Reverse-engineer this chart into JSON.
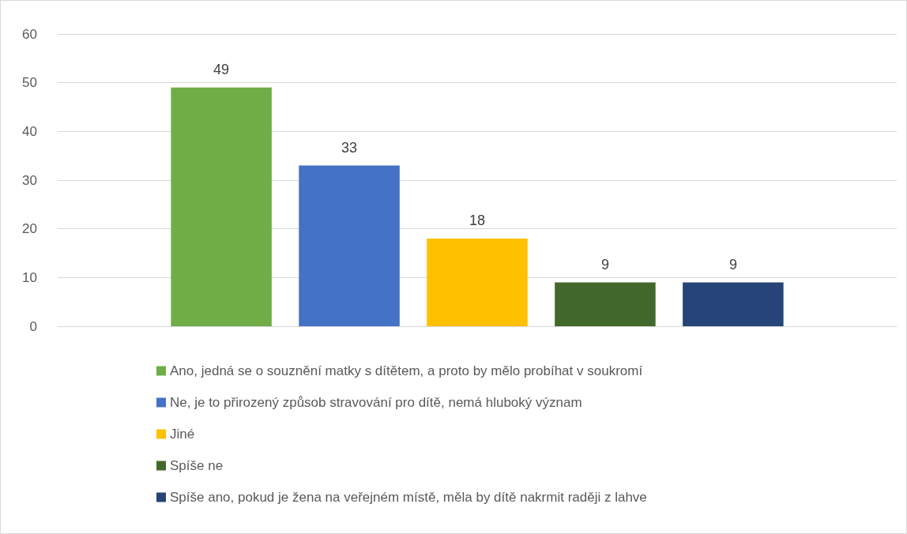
{
  "chart_data": {
    "type": "bar",
    "categories": [
      null
    ],
    "series": [
      {
        "name": "Ano, jedná se o souznění matky s dítětem, a proto by mělo probíhat v soukromí",
        "color": "#70ad47",
        "values": [
          49
        ]
      },
      {
        "name": "Ne, je to přirozený způsob stravování pro dítě, nemá hluboký význam",
        "color": "#4472c4",
        "values": [
          33
        ]
      },
      {
        "name": "Jiné",
        "color": "#ffc000",
        "values": [
          18
        ]
      },
      {
        "name": "Spíše ne",
        "color": "#43682b",
        "values": [
          9
        ]
      },
      {
        "name": "Spíše ano, pokud je žena na veřejném místě, měla by dítě nakrmit raději z lahve",
        "color": "#264478",
        "values": [
          9
        ]
      }
    ],
    "ylim": [
      0,
      60
    ],
    "yticks": [
      0,
      10,
      20,
      30,
      40,
      50,
      60
    ],
    "grid": "y",
    "legend": "bottom",
    "data_labels": true
  }
}
